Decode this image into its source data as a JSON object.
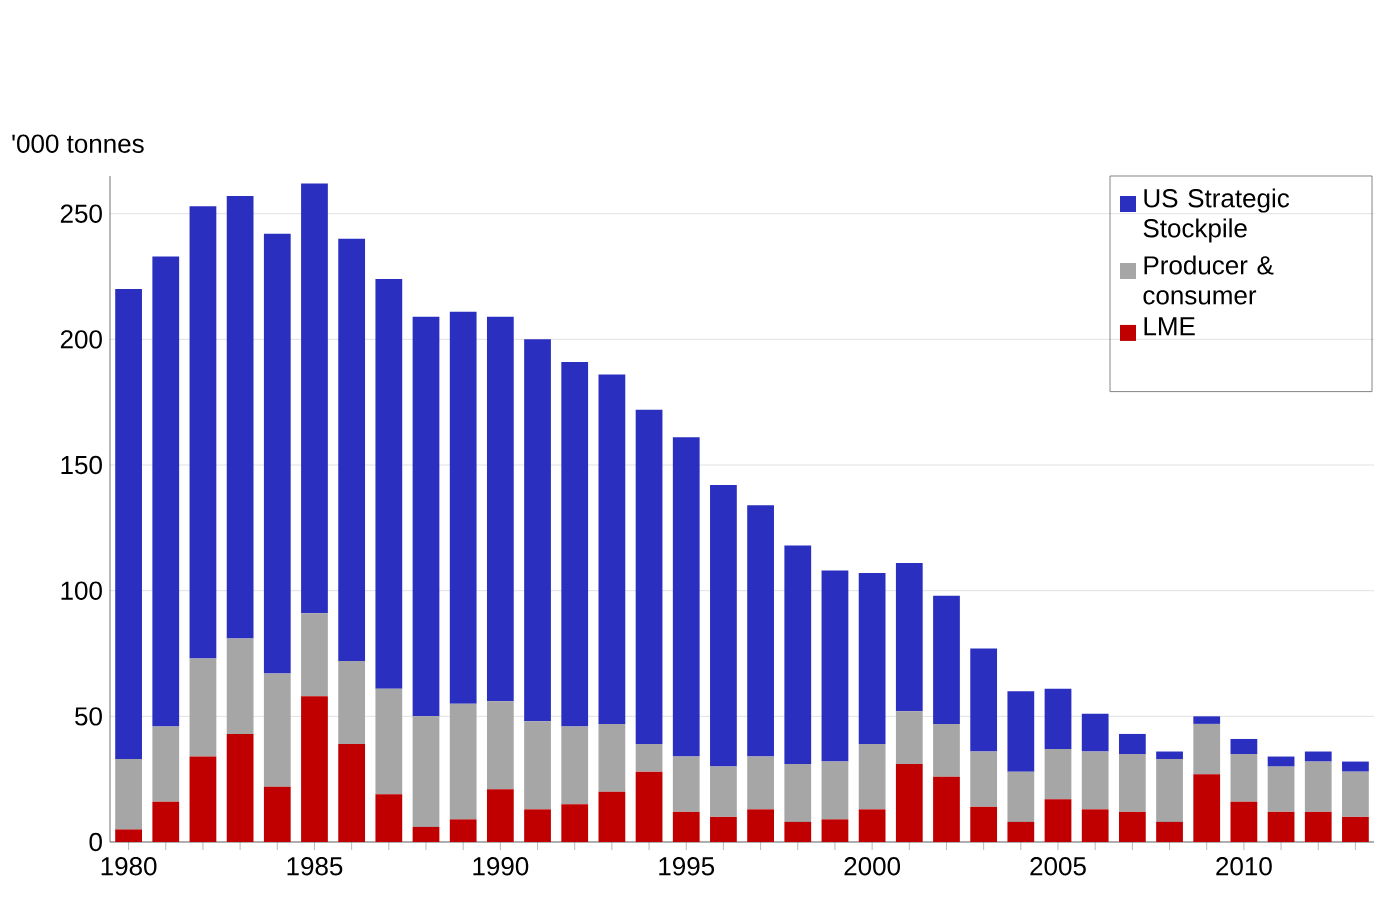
{
  "chart_data": {
    "type": "bar",
    "stacked": true,
    "ylabel": "'000 tonnes",
    "categories": [
      "1980",
      null,
      null,
      null,
      null,
      "1985",
      null,
      null,
      null,
      null,
      "1990",
      null,
      null,
      null,
      null,
      "1995",
      null,
      null,
      null,
      null,
      "2000",
      null,
      null,
      null,
      null,
      "2005",
      null,
      null,
      null,
      null,
      "2010",
      null,
      null,
      null
    ],
    "series": [
      {
        "name": "LME",
        "color": "#c00000",
        "values": [
          5,
          16,
          34,
          43,
          22,
          58,
          39,
          19,
          6,
          9,
          21,
          13,
          15,
          20,
          28,
          12,
          10,
          13,
          8,
          9,
          13,
          31,
          26,
          14,
          8,
          17,
          13,
          12,
          8,
          27,
          16,
          12,
          12,
          10
        ]
      },
      {
        "name": "Producer & consumer",
        "color": "#a6a6a6",
        "values": [
          28,
          30,
          39,
          38,
          45,
          33,
          33,
          42,
          44,
          46,
          35,
          35,
          31,
          27,
          11,
          22,
          20,
          21,
          23,
          23,
          26,
          21,
          21,
          22,
          20,
          20,
          23,
          23,
          25,
          20,
          19,
          18,
          20,
          18
        ]
      },
      {
        "name": "US Strategic Stockpile",
        "color": "#2b2fbf",
        "values": [
          187,
          187,
          180,
          176,
          175,
          171,
          168,
          163,
          159,
          156,
          153,
          152,
          145,
          139,
          133,
          127,
          112,
          100,
          87,
          76,
          68,
          59,
          51,
          41,
          32,
          24,
          15,
          8,
          3,
          3,
          6,
          4,
          4,
          4
        ]
      }
    ],
    "ylim": [
      0,
      265
    ],
    "yticks": [
      0,
      50,
      100,
      150,
      200,
      250
    ],
    "grid": "y",
    "legend": "top right"
  }
}
